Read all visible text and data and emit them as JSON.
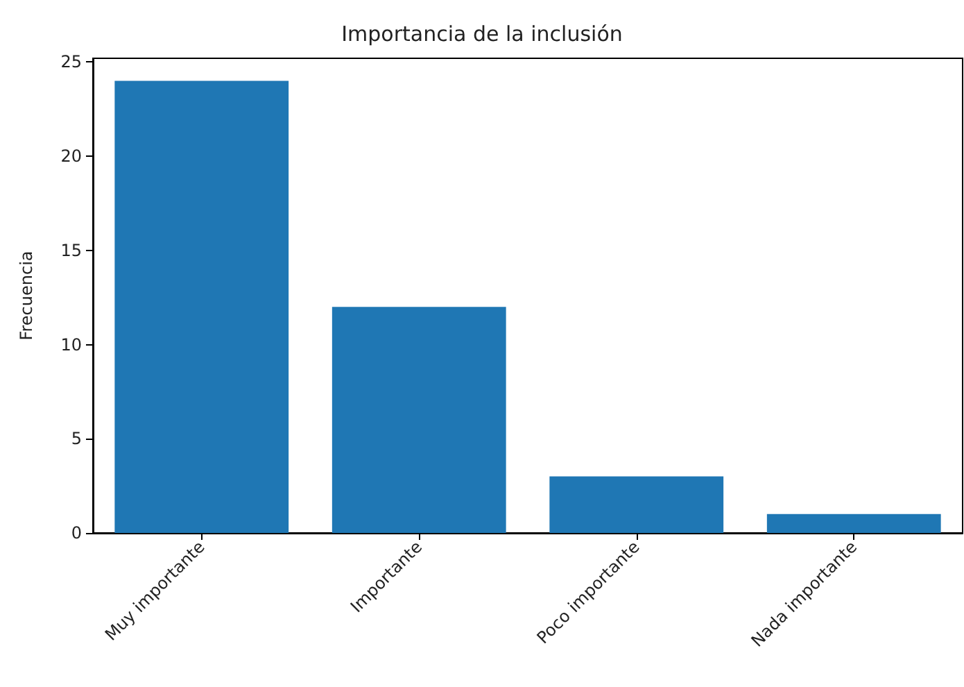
{
  "chart_data": {
    "type": "bar",
    "title": "Importancia de la inclusión",
    "ylabel": "Frecuencia",
    "categories": [
      "Muy importante",
      "Importante",
      "Poco importante",
      "Nada importante"
    ],
    "values": [
      24,
      12,
      3,
      1
    ],
    "color": "#1f77b4",
    "ylim": [
      0,
      25.2
    ],
    "yticks": [
      0,
      5,
      10,
      15,
      20,
      25
    ],
    "grid": false
  }
}
